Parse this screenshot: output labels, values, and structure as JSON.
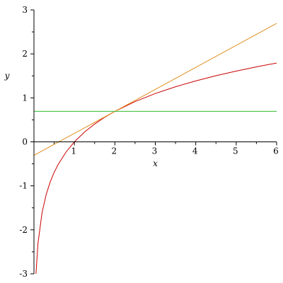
{
  "chart_data": {
    "type": "line",
    "xlabel": "x",
    "ylabel": "y",
    "xlim": [
      0,
      6
    ],
    "ylim": [
      -3,
      3
    ],
    "x_ticks": [
      "1",
      "2",
      "3",
      "4",
      "5",
      "6"
    ],
    "y_ticks": [
      "3",
      "2",
      "1",
      "0",
      "-1",
      "-2",
      "-3"
    ],
    "grid": false,
    "series": [
      {
        "color": "#cc0000",
        "x": [
          0.05,
          0.1,
          0.2,
          0.3,
          0.4,
          0.5,
          0.6,
          0.8,
          1.0,
          1.25,
          1.5,
          1.75,
          2.0,
          2.5,
          3.0,
          3.5,
          4.0,
          4.5,
          5.0,
          5.5,
          6.0
        ],
        "y": [
          -3.0,
          -2.303,
          -1.609,
          -1.204,
          -0.916,
          -0.693,
          -0.511,
          -0.223,
          0.0,
          0.223,
          0.405,
          0.56,
          0.693,
          0.916,
          1.099,
          1.253,
          1.386,
          1.504,
          1.609,
          1.705,
          1.792
        ]
      },
      {
        "color": "#e09020",
        "x": [
          0,
          6
        ],
        "y": [
          -0.307,
          2.693
        ]
      },
      {
        "color": "#33bb33",
        "x": [
          0,
          6
        ],
        "y": [
          0.693,
          0.693
        ]
      }
    ]
  }
}
